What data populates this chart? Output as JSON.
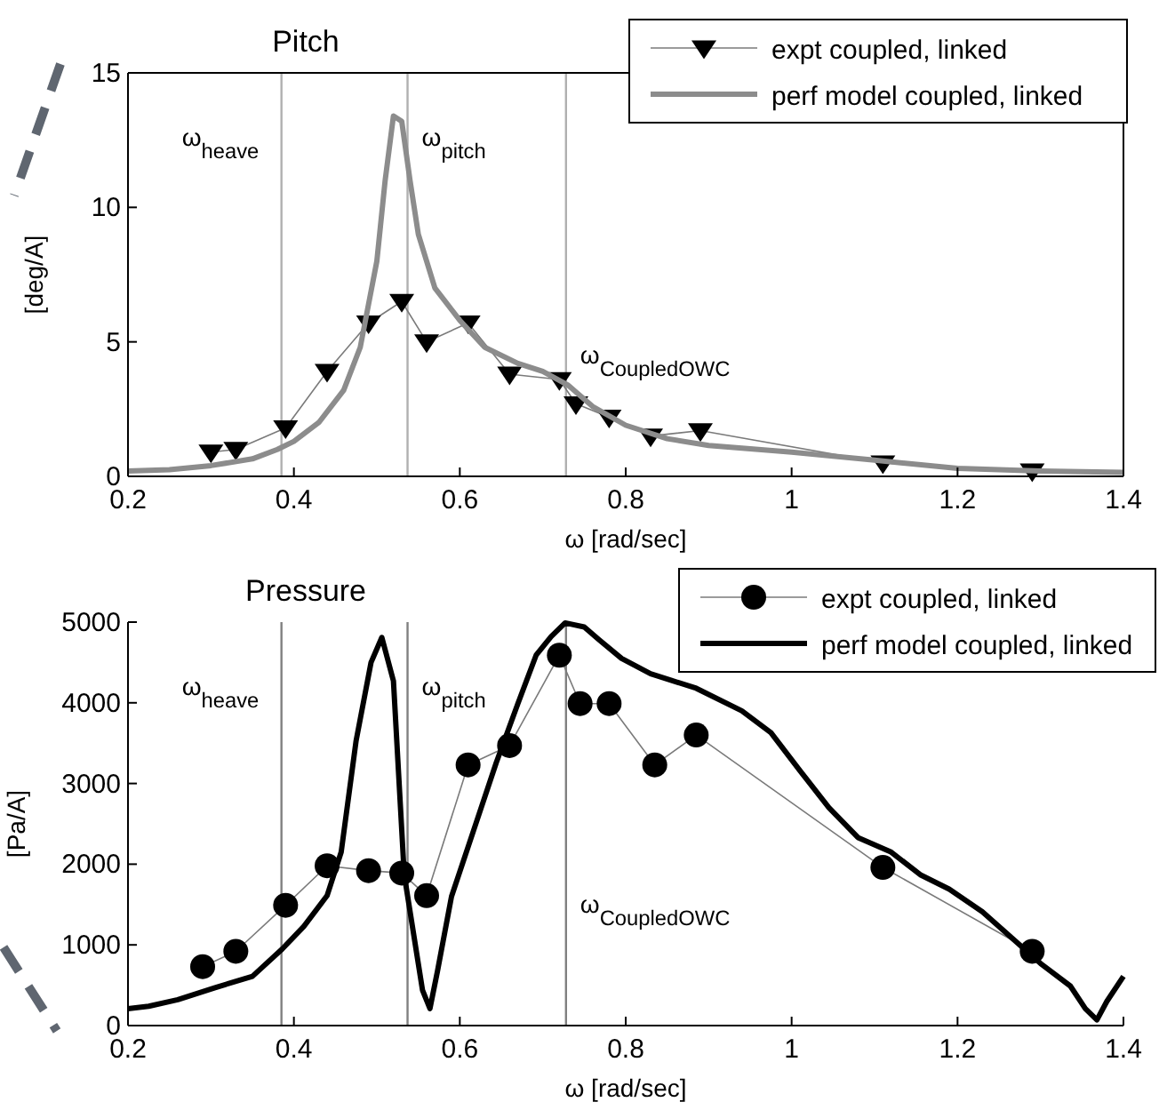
{
  "chart_data": [
    {
      "type": "line",
      "title": "Pitch",
      "xlabel": "ω [rad/sec]",
      "ylabel": "[deg/A]",
      "xlim": [
        0.2,
        1.4
      ],
      "ylim": [
        0,
        15
      ],
      "xticks": [
        0.2,
        0.4,
        0.6,
        0.8,
        1,
        1.2,
        1.4
      ],
      "yticks": [
        0,
        5,
        10,
        15
      ],
      "legend": "top right",
      "grid": false,
      "ref_lines": [
        {
          "axis": "x",
          "value": 0.385,
          "label": "ω$_{heave}$",
          "color": "#b0b0b0"
        },
        {
          "axis": "x",
          "value": 0.537,
          "label": "ω$_{pitch}$",
          "color": "#b0b0b0"
        },
        {
          "axis": "x",
          "value": 0.728,
          "label": "ω$_{CoupledOWC}$",
          "color": "#b0b0b0"
        }
      ],
      "series": [
        {
          "name": "expt coupled, linked",
          "color": "#000000",
          "marker": "triangle",
          "x": [
            0.3,
            0.33,
            0.39,
            0.44,
            0.49,
            0.53,
            0.56,
            0.61,
            0.66,
            0.72,
            0.74,
            0.78,
            0.83,
            0.89,
            1.11,
            1.29
          ],
          "values": [
            0.9,
            1.0,
            1.8,
            3.9,
            5.7,
            6.5,
            5.0,
            5.7,
            3.8,
            3.6,
            2.7,
            2.2,
            1.5,
            1.7,
            0.5,
            0.2
          ]
        },
        {
          "name": "perf model coupled, linked",
          "color": "#8c8c8c",
          "marker": "none",
          "x": [
            0.2,
            0.25,
            0.3,
            0.35,
            0.38,
            0.4,
            0.43,
            0.46,
            0.48,
            0.5,
            0.51,
            0.52,
            0.53,
            0.54,
            0.55,
            0.57,
            0.6,
            0.63,
            0.67,
            0.7,
            0.73,
            0.76,
            0.8,
            0.85,
            0.9,
            1.0,
            1.1,
            1.2,
            1.3,
            1.4
          ],
          "values": [
            0.2,
            0.25,
            0.4,
            0.65,
            1.0,
            1.3,
            2.0,
            3.2,
            4.8,
            8.0,
            11,
            13.4,
            13.2,
            11,
            9,
            7,
            5.8,
            4.8,
            4.2,
            3.9,
            3.4,
            2.6,
            1.9,
            1.4,
            1.15,
            0.9,
            0.6,
            0.3,
            0.2,
            0.15
          ]
        }
      ]
    },
    {
      "type": "line",
      "title": "Pressure",
      "xlabel": "ω [rad/sec]",
      "ylabel": "[Pa/A]",
      "xlim": [
        0.2,
        1.4
      ],
      "ylim": [
        0,
        5000
      ],
      "xticks": [
        0.2,
        0.4,
        0.6,
        0.8,
        1,
        1.2,
        1.4
      ],
      "yticks": [
        0,
        1000,
        2000,
        3000,
        4000,
        5000
      ],
      "legend": "top right",
      "grid": false,
      "ref_lines": [
        {
          "axis": "x",
          "value": 0.385,
          "label": "ω$_{heave}$",
          "color": "#808080"
        },
        {
          "axis": "x",
          "value": 0.537,
          "label": "ω$_{pitch}$",
          "color": "#808080"
        },
        {
          "axis": "x",
          "value": 0.728,
          "label": "ω$_{CoupledOWC}$",
          "color": "#808080"
        }
      ],
      "series": [
        {
          "name": "expt coupled, linked",
          "color": "#000000",
          "marker": "circle",
          "x": [
            0.29,
            0.33,
            0.39,
            0.44,
            0.49,
            0.53,
            0.56,
            0.61,
            0.66,
            0.72,
            0.745,
            0.78,
            0.835,
            0.885,
            1.11,
            1.29
          ],
          "values": [
            730,
            920,
            1490,
            1980,
            1920,
            1890,
            1610,
            3230,
            3470,
            4590,
            3990,
            3990,
            3230,
            3600,
            1960,
            920
          ]
        },
        {
          "name": "perf model coupled, linked",
          "color": "#000000",
          "marker": "none",
          "x": [
            0.2,
            0.225,
            0.26,
            0.305,
            0.35,
            0.386,
            0.412,
            0.44,
            0.457,
            0.475,
            0.493,
            0.506,
            0.52,
            0.533,
            0.555,
            0.564,
            0.573,
            0.59,
            0.617,
            0.644,
            0.67,
            0.692,
            0.71,
            0.727,
            0.75,
            0.768,
            0.795,
            0.83,
            0.885,
            0.94,
            0.975,
            1.01,
            1.045,
            1.08,
            1.12,
            1.155,
            1.19,
            1.23,
            1.265,
            1.3,
            1.336,
            1.354,
            1.368,
            1.38,
            1.4
          ],
          "values": [
            210,
            240,
            320,
            470,
            610,
            950,
            1230,
            1610,
            2150,
            3530,
            4500,
            4810,
            4270,
            1870,
            440,
            210,
            670,
            1600,
            2430,
            3260,
            3990,
            4590,
            4820,
            4990,
            4940,
            4780,
            4550,
            4360,
            4180,
            3900,
            3630,
            3160,
            2700,
            2330,
            2150,
            1870,
            1690,
            1410,
            1090,
            770,
            490,
            210,
            70,
            300,
            610
          ]
        }
      ]
    }
  ]
}
